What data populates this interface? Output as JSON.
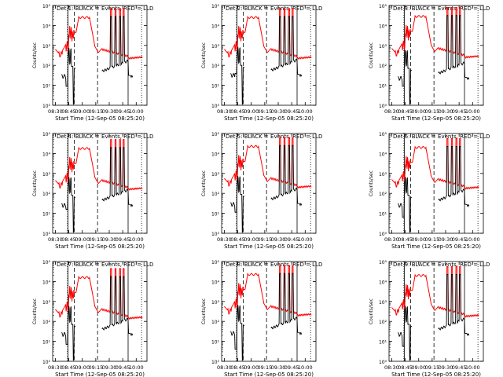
{
  "chart_data": {
    "type": "line",
    "x_tick_labels": [
      "08:30",
      "08:45",
      "09:00",
      "09:15",
      "09:30",
      "09:45",
      "10:00"
    ],
    "x_tick_minutes": [
      0,
      15,
      30,
      45,
      60,
      75,
      90
    ],
    "xlim_minutes": [
      -3,
      102
    ],
    "xlabel": "Start Time (12-Sep-05 08:25:20)",
    "ylabel": "Counts/sec",
    "ylim_log10": [
      0,
      5
    ],
    "y_tick_exponents": [
      0,
      1,
      2,
      3,
      4,
      5
    ],
    "y_tick_labels": [
      "10⁰",
      "10¹",
      "10²",
      "10³",
      "10⁴",
      "10⁵"
    ],
    "grid": false,
    "series": [
      {
        "name": "Events",
        "color": "#000000"
      },
      {
        "name": "LLD",
        "color": "#ff0000"
      }
    ],
    "vertical_markers": {
      "dashed_minutes": [
        21,
        47
      ],
      "dotted_minutes": [
        13.5,
        96
      ],
      "solid_minutes": [
        14,
        81
      ]
    },
    "panel_title_suffix": ": BLACK = Events, RED = LLD",
    "panels": [
      {
        "title": "Det 1",
        "red_base_log": 2.45,
        "black_base_log": 1.55,
        "black_drop_log": 0.6
      },
      {
        "title": "Det 2",
        "red_base_log": 2.45,
        "black_base_log": 1.6,
        "black_drop_log": 0.0
      },
      {
        "title": "Det 3",
        "red_base_log": 2.5,
        "black_base_log": 1.45,
        "black_drop_log": 0.5
      },
      {
        "title": "Det 4",
        "red_base_log": 2.3,
        "black_base_log": 1.5,
        "black_drop_log": 0.3
      },
      {
        "title": "Det 5",
        "red_base_log": 2.4,
        "black_base_log": 1.55,
        "black_drop_log": 0.5
      },
      {
        "title": "Det 6",
        "red_base_log": 2.35,
        "black_base_log": 1.5,
        "black_drop_log": 0.7
      },
      {
        "title": "Det 7",
        "red_base_log": 2.25,
        "black_base_log": 1.45,
        "black_drop_log": 0.6
      },
      {
        "title": "Det 8",
        "red_base_log": 2.4,
        "black_base_log": 1.5,
        "black_drop_log": 0.9
      },
      {
        "title": "Det 9",
        "red_base_log": 2.35,
        "black_base_log": 1.45,
        "black_drop_log": 0.7
      }
    ]
  }
}
